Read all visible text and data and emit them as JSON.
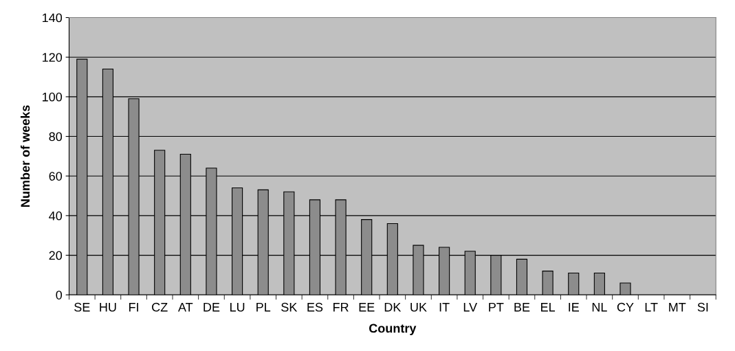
{
  "chart_data": {
    "type": "bar",
    "xlabel": "Country",
    "ylabel": "Number of weeks",
    "categories": [
      "SE",
      "HU",
      "FI",
      "CZ",
      "AT",
      "DE",
      "LU",
      "PL",
      "SK",
      "ES",
      "FR",
      "EE",
      "DK",
      "UK",
      "IT",
      "LV",
      "PT",
      "BE",
      "EL",
      "IE",
      "NL",
      "CY",
      "LT",
      "MT",
      "SI"
    ],
    "values": [
      119,
      114,
      99,
      73,
      71,
      64,
      54,
      53,
      52,
      48,
      48,
      38,
      36,
      25,
      24,
      22,
      20,
      18,
      12,
      11,
      11,
      6,
      0,
      0,
      0
    ],
    "color": "#8c8c8c",
    "ylim": [
      0,
      140
    ],
    "yticks": [
      0,
      20,
      40,
      60,
      80,
      100,
      120,
      140
    ],
    "grid": "y"
  }
}
